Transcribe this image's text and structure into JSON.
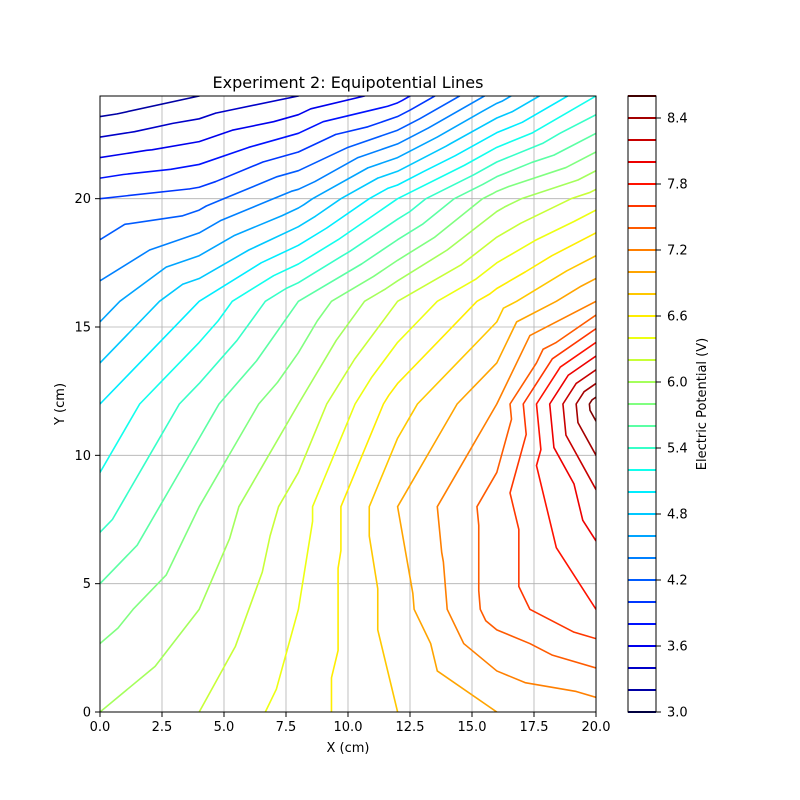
{
  "chart_data": {
    "type": "contour",
    "title": "Experiment 2: Equipotential Lines",
    "xlabel": "X (cm)",
    "ylabel": "Y (cm)",
    "xlim": [
      0,
      20
    ],
    "ylim": [
      0,
      24
    ],
    "grid": true,
    "x_ticks": [
      "0.0",
      "2.5",
      "5.0",
      "7.5",
      "10.0",
      "12.5",
      "15.0",
      "17.5",
      "20.0"
    ],
    "y_ticks": [
      "0",
      "5",
      "10",
      "15",
      "20"
    ],
    "colorbar": {
      "label": "Electric Potential (V)",
      "min": 3.0,
      "max": 8.6,
      "step": 0.2,
      "tick_labels": [
        "3.0",
        "3.6",
        "4.2",
        "4.8",
        "5.4",
        "6.0",
        "6.6",
        "7.2",
        "7.8",
        "8.4"
      ]
    },
    "grid_x": [
      0,
      4,
      8,
      12,
      16,
      20
    ],
    "grid_y": [
      0,
      4,
      8,
      12,
      16,
      20,
      24
    ],
    "potential_grid": [
      [
        6.0,
        6.2,
        6.5,
        6.8,
        7.0,
        7.1
      ],
      [
        5.7,
        6.0,
        6.4,
        6.9,
        7.5,
        7.8
      ],
      [
        5.3,
        5.8,
        6.3,
        7.0,
        7.5,
        8.1
      ],
      [
        5.0,
        5.5,
        6.0,
        6.7,
        7.2,
        8.7
      ],
      [
        4.5,
        5.0,
        5.6,
        6.2,
        6.7,
        7.2
      ],
      [
        4.0,
        4.1,
        4.5,
        5.2,
        5.9,
        6.3
      ],
      [
        3.0,
        3.2,
        3.4,
        3.7,
        4.5,
        5.2
      ]
    ]
  }
}
